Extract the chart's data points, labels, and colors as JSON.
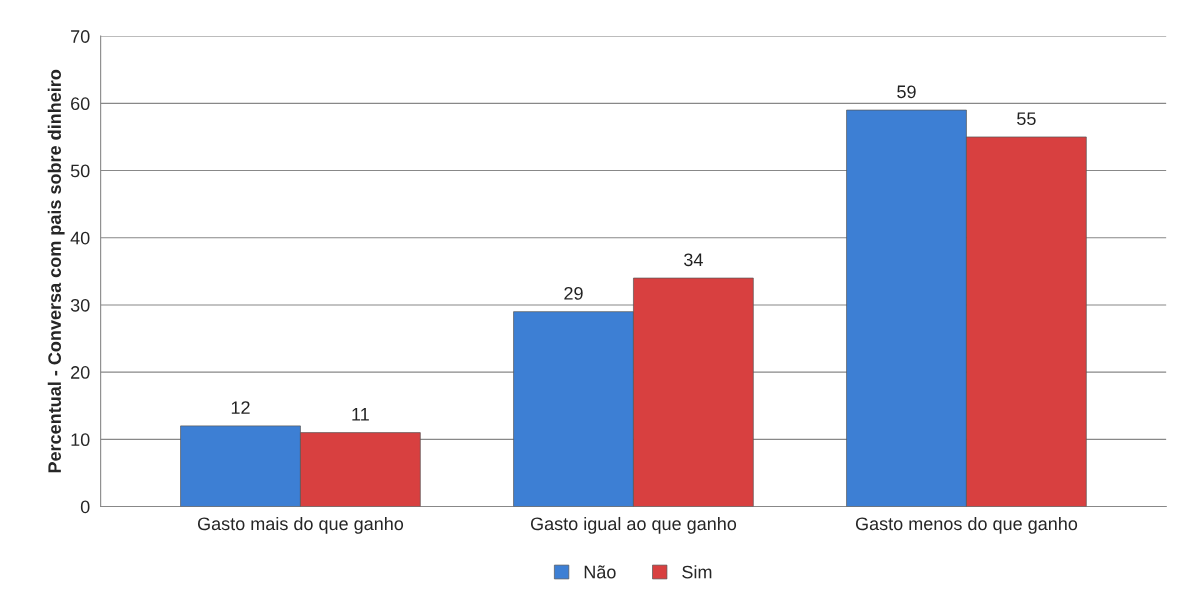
{
  "chart_data": {
    "type": "bar",
    "ylabel": "Percentual - Conversa com pais sobre dinheiro",
    "categories": [
      "Gasto mais do que ganho",
      "Gasto igual ao que ganho",
      "Gasto menos do que ganho"
    ],
    "series": [
      {
        "name": "Não",
        "color": "#3d7fd4",
        "values": [
          12,
          29,
          59
        ]
      },
      {
        "name": "Sim",
        "color": "#d84040",
        "values": [
          11,
          34,
          55
        ]
      }
    ],
    "ylim": [
      0,
      70
    ],
    "yticks": [
      0,
      10,
      20,
      30,
      40,
      50,
      60,
      70
    ],
    "grid": "y",
    "legend": "bottom",
    "data_labels": true
  }
}
